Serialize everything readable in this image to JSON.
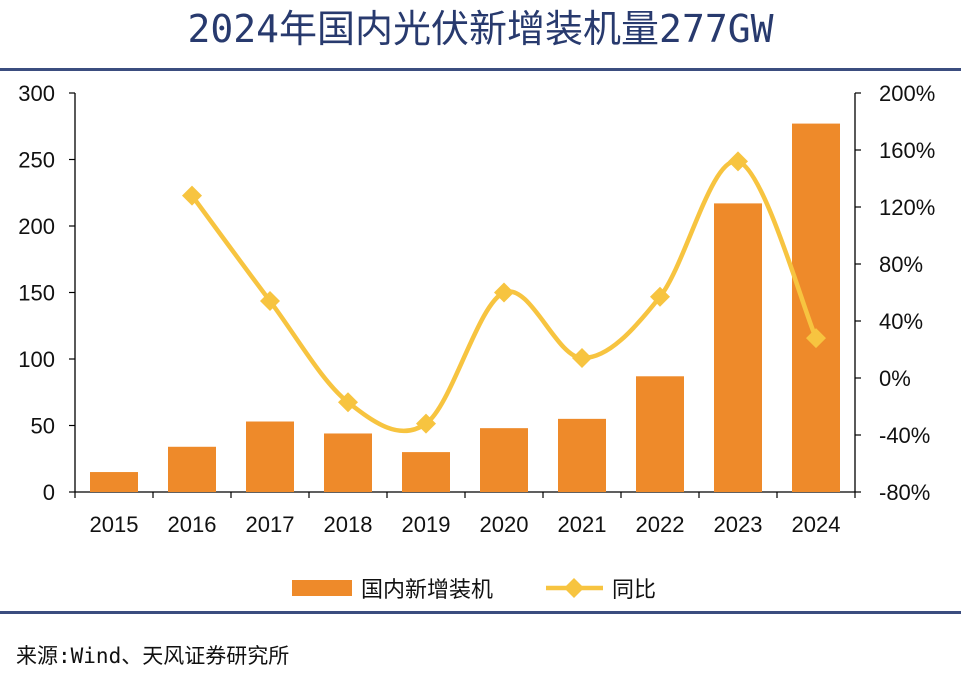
{
  "title": "2024年国内光伏新增装机量277GW",
  "source": "来源:Wind、天风证券研究所",
  "colors": {
    "bar": "#ee8a2a",
    "line": "#f7c440",
    "title": "#283a6e",
    "rule": "#3b4d7f"
  },
  "chart_data": {
    "type": "bar",
    "categories": [
      "2015",
      "2016",
      "2017",
      "2018",
      "2019",
      "2020",
      "2021",
      "2022",
      "2023",
      "2024"
    ],
    "series": [
      {
        "name": "国内新增装机",
        "type": "bar",
        "axis": "left",
        "values": [
          15,
          34,
          53,
          44,
          30,
          48,
          55,
          87,
          217,
          277
        ]
      },
      {
        "name": "同比",
        "type": "line",
        "axis": "right",
        "unit": "%",
        "values": [
          null,
          128,
          54,
          -17,
          -32,
          60,
          14,
          57,
          152,
          28
        ]
      }
    ],
    "y_left": {
      "min": 0,
      "max": 300,
      "ticks": [
        "0",
        "50",
        "100",
        "150",
        "200",
        "250",
        "300"
      ]
    },
    "y_right": {
      "min": -80,
      "max": 200,
      "ticks": [
        "-80%",
        "-40%",
        "0%",
        "40%",
        "80%",
        "120%",
        "160%",
        "200%"
      ]
    },
    "legend": {
      "position": "bottom"
    }
  }
}
